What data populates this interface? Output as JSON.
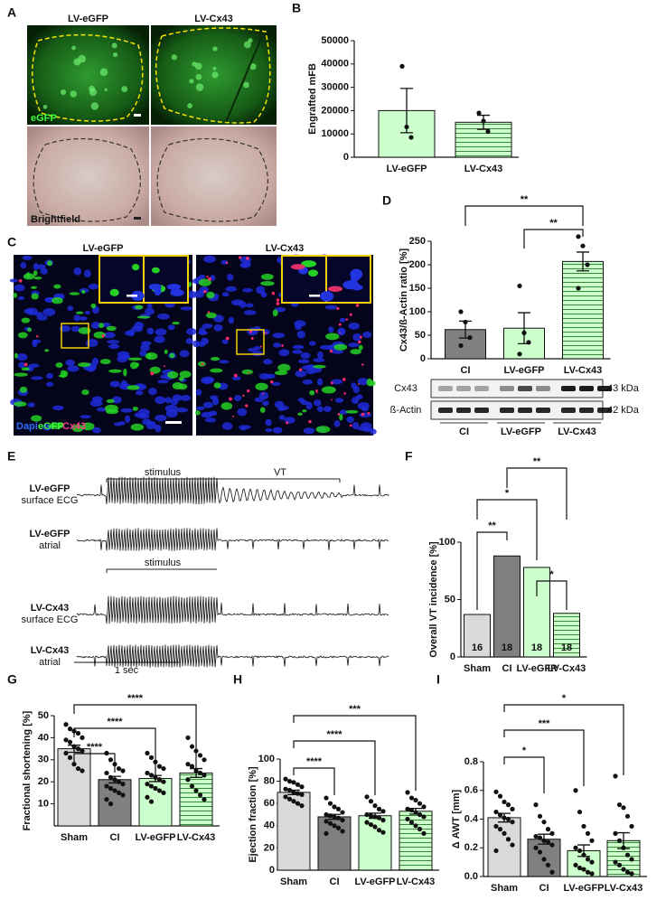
{
  "chart_data": [
    {
      "type": "bar",
      "panel": "B",
      "ylabel": "Engrafted mFB",
      "categories": [
        "LV-eGFP",
        "LV-Cx43"
      ],
      "values": [
        20000,
        15000
      ],
      "errors": [
        9500,
        3000
      ],
      "points": [
        [
          39000,
          13000,
          8500
        ],
        [
          19000,
          15500,
          11000
        ]
      ],
      "colors": [
        "#ccffcc",
        "#ccffcc"
      ],
      "hatched": [
        false,
        true
      ],
      "ylim": [
        0,
        50000
      ],
      "yticks": [
        0,
        10000,
        20000,
        30000,
        40000,
        50000
      ],
      "annotations": []
    },
    {
      "type": "bar",
      "panel": "D",
      "ylabel": "Cx43/ß-Actin ratio [%]",
      "categories": [
        "CI",
        "LV-eGFP",
        "LV-Cx43"
      ],
      "values": [
        62,
        65,
        207
      ],
      "errors": [
        18,
        33,
        20
      ],
      "points": [
        [
          100,
          78,
          45,
          28
        ],
        [
          155,
          55,
          35,
          10
        ],
        [
          260,
          240,
          200,
          150
        ]
      ],
      "colors": [
        "#808080",
        "#ccffcc",
        "#ccffcc"
      ],
      "hatched": [
        false,
        false,
        true
      ],
      "ylim": [
        0,
        250
      ],
      "yticks": [
        0,
        50,
        100,
        150,
        200,
        250
      ],
      "annotations": [
        "**",
        "**"
      ]
    },
    {
      "type": "bar",
      "panel": "F",
      "ylabel": "Overall VT incidence [%]",
      "categories": [
        "Sham",
        "CI",
        "LV-eGFP",
        "LV-Cx43"
      ],
      "values": [
        37,
        88,
        78,
        38
      ],
      "n_labels": [
        "16",
        "18",
        "18",
        "18"
      ],
      "colors": [
        "#d9d9d9",
        "#808080",
        "#ccffcc",
        "#ccffcc"
      ],
      "hatched": [
        false,
        false,
        false,
        true
      ],
      "ylim": [
        0,
        100
      ],
      "yticks": [
        0,
        50,
        100
      ],
      "annotations": [
        "**",
        "*",
        "*",
        "**"
      ]
    },
    {
      "type": "bar",
      "panel": "G",
      "ylabel": "Fractional shortening [%]",
      "categories": [
        "Sham",
        "CI",
        "LV-eGFP",
        "LV-Cx43"
      ],
      "values": [
        35,
        21,
        21.5,
        24
      ],
      "errors": [
        1.6,
        1.5,
        1.4,
        2
      ],
      "points": [
        [
          46,
          44,
          43,
          42,
          40,
          39,
          38,
          36,
          35,
          34,
          33,
          31,
          28,
          26,
          25
        ],
        [
          33,
          30,
          28,
          26,
          25,
          24,
          22,
          21,
          20,
          19,
          18,
          17,
          16,
          15,
          14,
          12,
          10
        ],
        [
          33,
          31,
          29,
          27,
          26,
          24,
          23,
          22,
          21,
          20,
          19,
          18,
          17,
          16,
          15,
          13,
          11
        ],
        [
          40,
          36,
          34,
          32,
          30,
          28,
          27,
          25,
          24,
          23,
          21,
          18,
          16,
          14,
          12
        ]
      ],
      "colors": [
        "#d9d9d9",
        "#808080",
        "#ccffcc",
        "#ccffcc"
      ],
      "hatched": [
        false,
        false,
        false,
        true
      ],
      "ylim": [
        0,
        50
      ],
      "yticks": [
        10,
        20,
        30,
        40,
        50
      ],
      "annotations": [
        "****",
        "****",
        "****"
      ]
    },
    {
      "type": "bar",
      "panel": "H",
      "ylabel": "Ejection fraction [%]",
      "categories": [
        "Sham",
        "CI",
        "LV-eGFP",
        "LV-Cx43"
      ],
      "values": [
        70,
        48,
        49,
        53
      ],
      "errors": [
        2,
        2.2,
        2.3,
        2.6
      ],
      "points": [
        [
          82,
          80,
          79,
          77,
          75,
          73,
          72,
          70,
          69,
          68,
          66,
          64,
          62,
          60,
          58
        ],
        [
          65,
          60,
          57,
          55,
          52,
          50,
          49,
          48,
          47,
          45,
          44,
          42,
          40,
          38,
          35,
          33
        ],
        [
          66,
          62,
          58,
          55,
          53,
          50,
          49,
          48,
          47,
          45,
          43,
          41,
          39,
          36,
          34
        ],
        [
          70,
          65,
          63,
          60,
          57,
          55,
          54,
          52,
          50,
          48,
          46,
          43,
          40,
          37,
          33
        ]
      ],
      "colors": [
        "#d9d9d9",
        "#808080",
        "#ccffcc",
        "#ccffcc"
      ],
      "hatched": [
        false,
        false,
        false,
        true
      ],
      "ylim": [
        0,
        100
      ],
      "yticks": [
        0,
        20,
        40,
        60,
        80,
        100
      ],
      "annotations": [
        "****",
        "****",
        "***"
      ]
    },
    {
      "type": "bar",
      "panel": "I",
      "ylabel": "Δ AWT [mm]",
      "categories": [
        "Sham",
        "CI",
        "LV-eGFP",
        "LV-Cx43"
      ],
      "values": [
        0.41,
        0.26,
        0.18,
        0.25
      ],
      "errors": [
        0.03,
        0.035,
        0.04,
        0.055
      ],
      "points": [
        [
          0.59,
          0.56,
          0.52,
          0.5,
          0.47,
          0.45,
          0.43,
          0.41,
          0.4,
          0.38,
          0.35,
          0.33,
          0.3,
          0.26,
          0.22,
          0.18
        ],
        [
          0.5,
          0.42,
          0.38,
          0.33,
          0.3,
          0.28,
          0.27,
          0.25,
          0.24,
          0.22,
          0.2,
          0.17,
          0.12,
          0.08,
          0.03
        ],
        [
          0.6,
          0.45,
          0.35,
          0.3,
          0.25,
          0.2,
          0.18,
          0.15,
          0.12,
          0.1,
          0.08,
          0.06,
          0.05,
          0.03,
          0.02
        ],
        [
          0.7,
          0.5,
          0.48,
          0.42,
          0.35,
          0.3,
          0.25,
          0.2,
          0.15,
          0.12,
          0.1,
          0.08,
          0.05,
          0.03,
          0.02
        ]
      ],
      "colors": [
        "#d9d9d9",
        "#808080",
        "#ccffcc",
        "#ccffcc"
      ],
      "hatched": [
        false,
        false,
        false,
        true
      ],
      "ylim": [
        0,
        0.8
      ],
      "yticks": [
        {
          "value": 0,
          "label": "0.0"
        },
        0.2,
        0.4,
        0.6,
        0.8
      ],
      "annotations": [
        "*",
        "***",
        "*"
      ]
    }
  ],
  "panel_A": {
    "label": "A",
    "titles": [
      "LV-eGFP",
      "LV-Cx43"
    ],
    "stain": "eGFP",
    "brightfield": "Brightfield"
  },
  "panel_C": {
    "label": "C",
    "titles": [
      "LV-eGFP",
      "LV-Cx43"
    ],
    "legend": [
      "Dapi",
      "eGFP",
      "Cx43"
    ]
  },
  "panel_E": {
    "label": "E",
    "stimulus": [
      "stimulus",
      "stimulus"
    ],
    "vt": "VT",
    "traces": [
      [
        "LV-eGFP",
        "surface ECG"
      ],
      [
        "LV-eGFP",
        "atrial"
      ],
      [
        "LV-Cx43",
        "surface ECG"
      ],
      [
        "LV-Cx43",
        "atrial"
      ]
    ],
    "scale": "1 sec"
  },
  "blot": {
    "rows": [
      "Cx43",
      "ß-Actin"
    ],
    "sizes": [
      "43 kDa",
      "42 kDa"
    ],
    "groups": [
      "CI",
      "LV-eGFP",
      "LV-Cx43"
    ]
  }
}
